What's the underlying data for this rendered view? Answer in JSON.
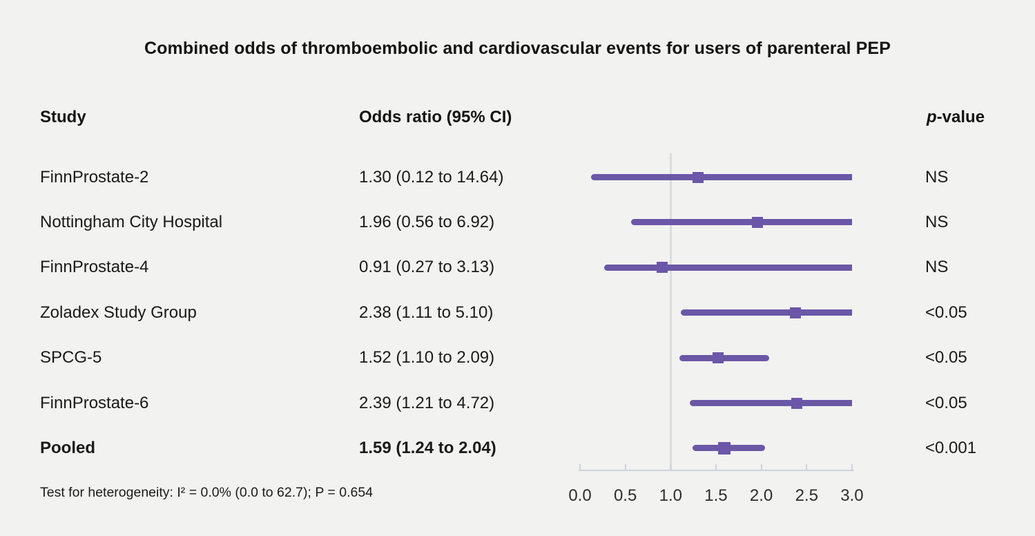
{
  "title": "Combined odds of thromboembolic and cardiovascular events for users of parenteral PEP",
  "columns": {
    "study": "Study",
    "odds_ratio": "Odds ratio (95% CI)",
    "p_value_italic": "p",
    "p_value_rest": "-value"
  },
  "footer": "Test for heterogeneity: I² = 0.0% (0.0 to 62.7); P = 0.654",
  "chart_data": {
    "type": "forest",
    "title": "Combined odds of thromboembolic and cardiovascular events for users of parenteral PEP",
    "xlabel": "",
    "ylabel": "",
    "axis": {
      "min": 0.0,
      "max": 3.0,
      "tick_labels": [
        "0.0",
        "0.5",
        "1.0",
        "1.5",
        "2.0",
        "2.5",
        "3.0"
      ],
      "tick_values": [
        0.0,
        0.5,
        1.0,
        1.5,
        2.0,
        2.5,
        3.0
      ],
      "reference_line": 1.0
    },
    "rows": [
      {
        "study": "FinnProstate-2",
        "or_label": "1.30 (0.12 to 14.64)",
        "or": 1.3,
        "ci_low": 0.12,
        "ci_high": 14.64,
        "p": "NS",
        "bold": false
      },
      {
        "study": "Nottingham City Hospital",
        "or_label": "1.96 (0.56 to 6.92)",
        "or": 1.96,
        "ci_low": 0.56,
        "ci_high": 6.92,
        "p": "NS",
        "bold": false
      },
      {
        "study": "FinnProstate-4",
        "or_label": "0.91 (0.27 to 3.13)",
        "or": 0.91,
        "ci_low": 0.27,
        "ci_high": 3.13,
        "p": "NS",
        "bold": false
      },
      {
        "study": "Zoladex Study Group",
        "or_label": "2.38 (1.11 to 5.10)",
        "or": 2.38,
        "ci_low": 1.11,
        "ci_high": 5.1,
        "p": "<0.05",
        "bold": false
      },
      {
        "study": "SPCG-5",
        "or_label": "1.52 (1.10 to 2.09)",
        "or": 1.52,
        "ci_low": 1.1,
        "ci_high": 2.09,
        "p": "<0.05",
        "bold": false
      },
      {
        "study": "FinnProstate-6",
        "or_label": "2.39 (1.21 to 4.72)",
        "or": 2.39,
        "ci_low": 1.21,
        "ci_high": 4.72,
        "p": "<0.05",
        "bold": false
      },
      {
        "study": "Pooled",
        "or_label": "1.59 (1.24 to 2.04)",
        "or": 1.59,
        "ci_low": 1.24,
        "ci_high": 2.04,
        "p": "<0.001",
        "bold": true
      }
    ],
    "colors": {
      "ci_line": "#6a58a7",
      "marker": "#6b56a8",
      "axis": "#ccd3da",
      "reference_line": "#d9dde2",
      "background": "#f2f2f1",
      "text": "#1a1a1a"
    },
    "legend": null,
    "grid": false
  }
}
